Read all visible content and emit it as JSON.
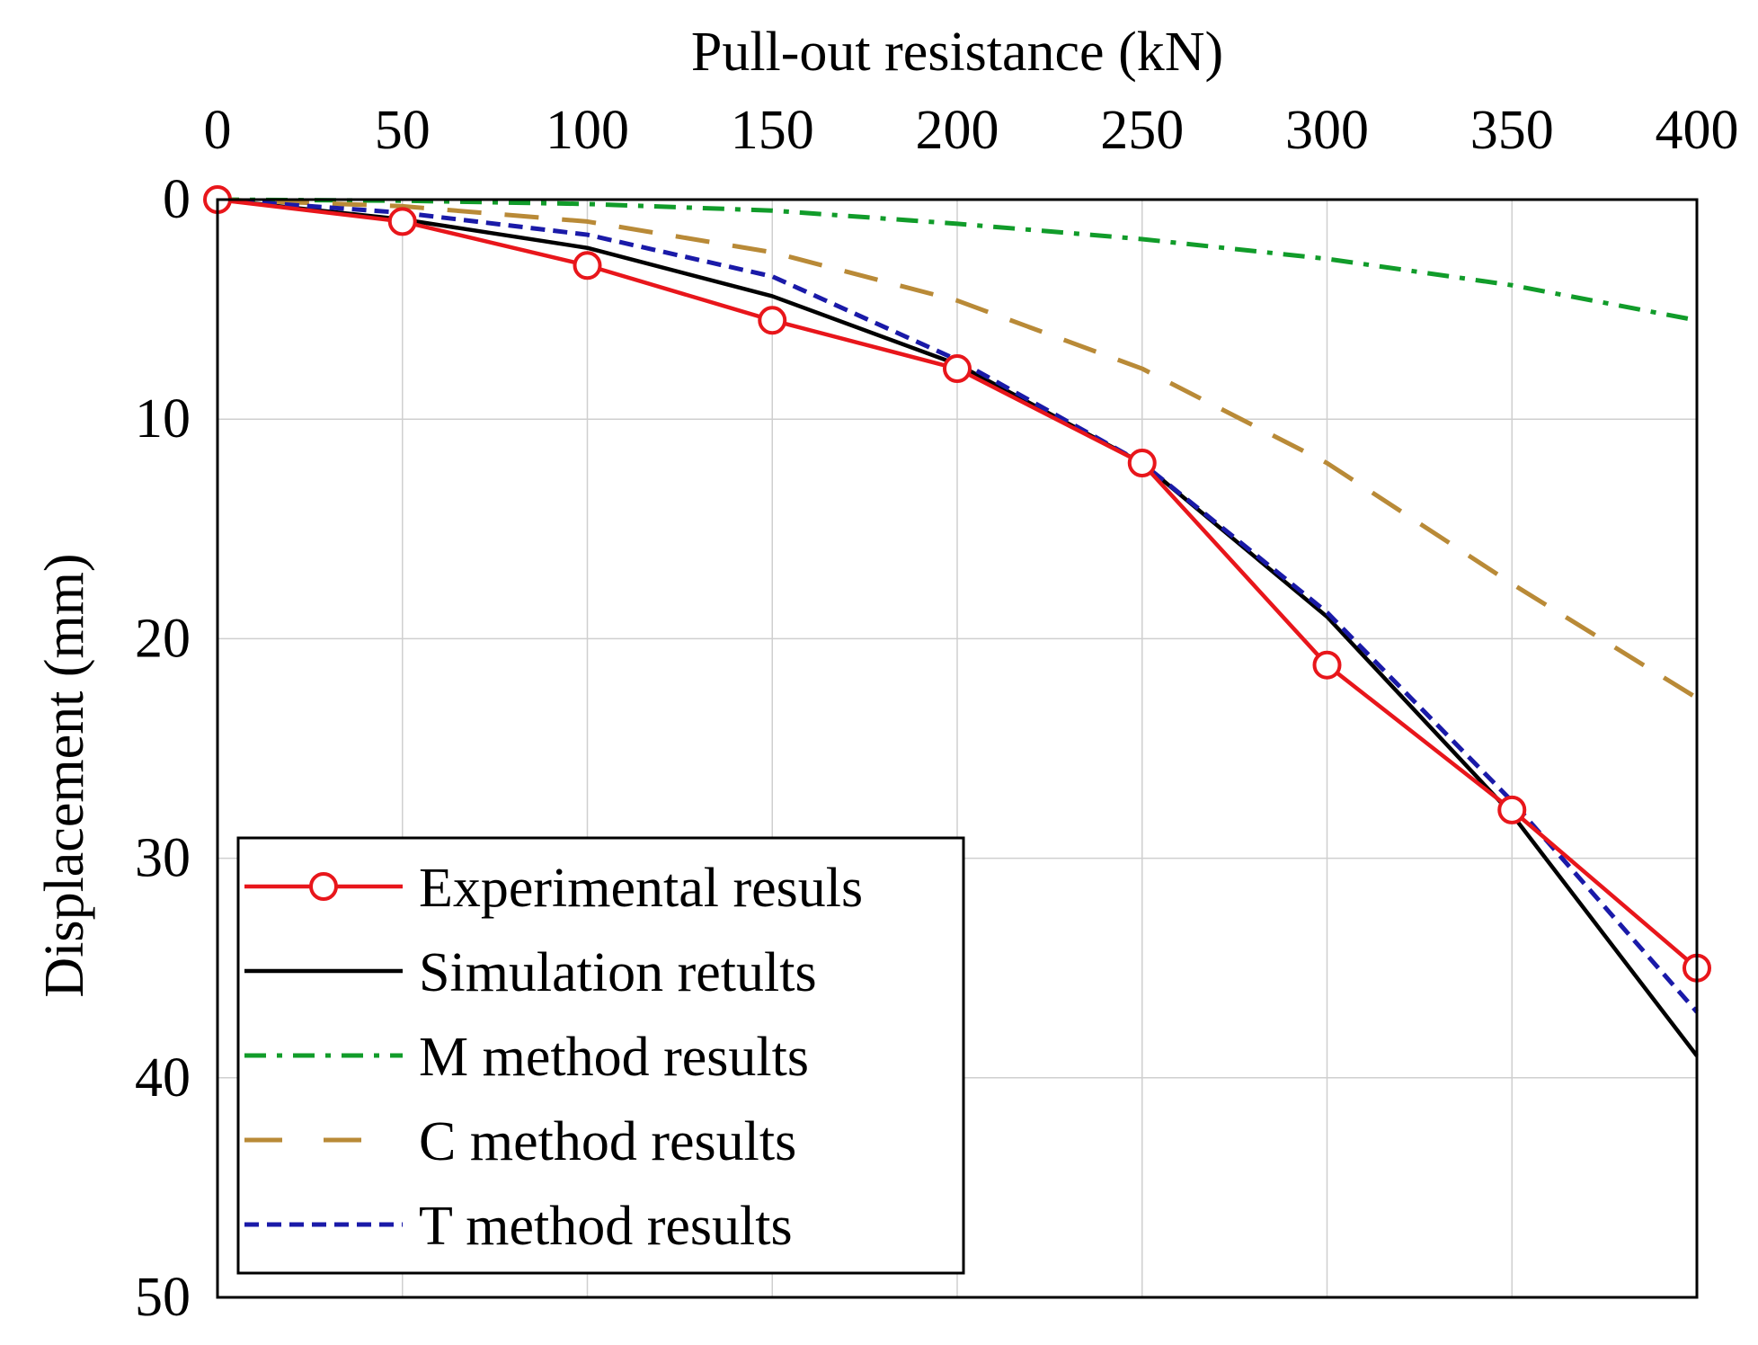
{
  "chart_data": {
    "type": "line",
    "title": "",
    "xlabel": "Pull-out resistance (kN)",
    "ylabel": "Displacement (mm)",
    "xlim": [
      0,
      400
    ],
    "ylim": [
      0,
      50
    ],
    "y_inverted": true,
    "x_axis_position": "top",
    "xticks": [
      0,
      50,
      100,
      150,
      200,
      250,
      300,
      350,
      400
    ],
    "yticks": [
      0,
      10,
      20,
      30,
      40,
      50
    ],
    "grid": true,
    "legend_position": "bottom-left",
    "series": [
      {
        "name": "Experimental resuls",
        "color": "#e8161b",
        "style": "solid",
        "marker": "circle",
        "x": [
          0,
          50,
          100,
          150,
          200,
          250,
          300,
          350,
          400
        ],
        "y": [
          0,
          1,
          3,
          5.5,
          7.7,
          12,
          21.2,
          27.8,
          35
        ]
      },
      {
        "name": "Simulation retults",
        "color": "#000000",
        "style": "solid",
        "marker": "none",
        "x": [
          0,
          50,
          100,
          150,
          200,
          250,
          300,
          350,
          400
        ],
        "y": [
          0,
          0.9,
          2.2,
          4.4,
          7.5,
          12,
          19,
          28,
          39
        ]
      },
      {
        "name": "M method results",
        "color": "#119c2a",
        "style": "dashdot",
        "marker": "none",
        "x": [
          0,
          50,
          100,
          150,
          200,
          250,
          300,
          350,
          400
        ],
        "y": [
          0,
          0.05,
          0.2,
          0.5,
          1.1,
          1.8,
          2.7,
          3.9,
          5.5
        ]
      },
      {
        "name": "C method results",
        "color": "#b98a37",
        "style": "dashed",
        "marker": "none",
        "x": [
          0,
          50,
          100,
          150,
          200,
          250,
          300,
          350,
          400
        ],
        "y": [
          0,
          0.3,
          1.0,
          2.4,
          4.6,
          7.7,
          12,
          17.5,
          22.7
        ]
      },
      {
        "name": "T method results",
        "color": "#1a1aa8",
        "style": "shortdash",
        "marker": "none",
        "x": [
          0,
          50,
          100,
          150,
          200,
          250,
          300,
          350,
          400
        ],
        "y": [
          0,
          0.6,
          1.6,
          3.5,
          7.3,
          12,
          18.8,
          27.4,
          37
        ]
      }
    ]
  }
}
